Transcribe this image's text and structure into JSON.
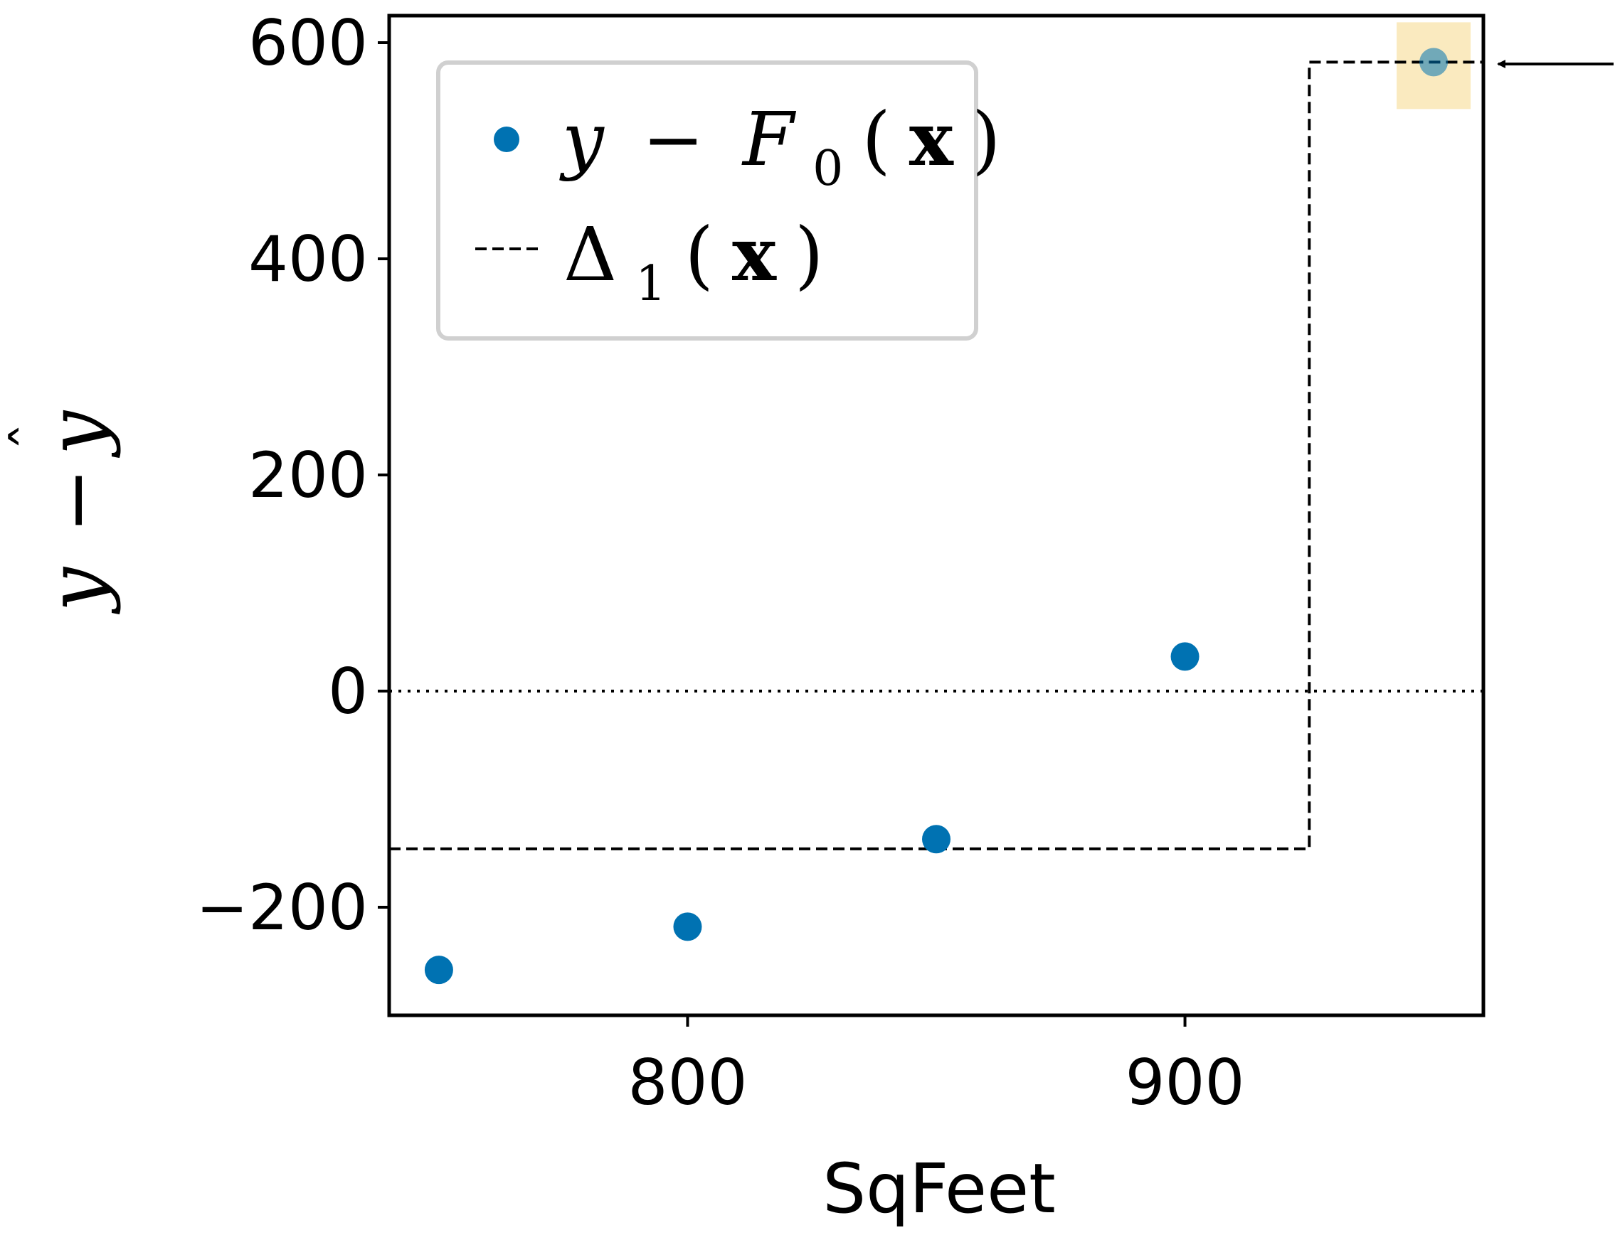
{
  "chart_data": {
    "type": "scatter",
    "xlabel": "SqFeet",
    "ylabel": "y − ŷ",
    "xlim": [
      740,
      960
    ],
    "ylim": [
      -300,
      625
    ],
    "xticks": [
      800,
      900
    ],
    "yticks": [
      -200,
      0,
      200,
      400,
      600
    ],
    "ytick_labels": [
      "−200",
      "0",
      "200",
      "400",
      "600"
    ],
    "grid": false,
    "legend_position": "upper-left",
    "series": [
      {
        "name": "y − F0(x)",
        "kind": "scatter",
        "color": "#0072b2",
        "x": [
          750,
          800,
          850,
          900,
          950
        ],
        "y": [
          -258,
          -218,
          -137,
          32,
          582
        ]
      },
      {
        "name": "Δ1(x)",
        "kind": "step",
        "color": "#000000",
        "linestyle": "dashed",
        "x": [
          740,
          925,
          925,
          960
        ],
        "y": [
          -146,
          -146,
          582,
          582
        ]
      }
    ],
    "reference_line": {
      "y": 0,
      "linestyle": "dotted",
      "color": "#000000"
    },
    "highlight": {
      "x": 950,
      "y": 582,
      "color": "#f5d88a"
    },
    "annotation_arrow": {
      "points_to": "highlighted point",
      "direction": "left"
    }
  }
}
